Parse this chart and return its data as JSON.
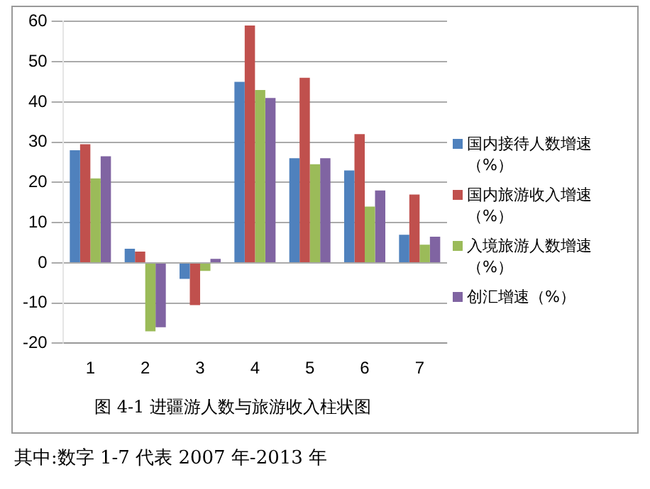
{
  "chart_data": {
    "type": "bar",
    "title": "图 4-1 进疆游人数与旅游收入柱状图",
    "annotations": [
      "其中:数字 1-7 代表 2007 年-2013 年"
    ],
    "categories": [
      "1",
      "2",
      "3",
      "4",
      "5",
      "6",
      "7"
    ],
    "series": [
      {
        "name": "国内接待人数增速（%）",
        "color": "#4f81bd",
        "values": [
          28,
          3.5,
          -4,
          45,
          26,
          23,
          7
        ]
      },
      {
        "name": "国内旅游收入增速（%）",
        "color": "#c0504d",
        "values": [
          29.5,
          2.8,
          -10.5,
          59,
          46,
          32,
          17
        ]
      },
      {
        "name": "入境旅游人数增速（%）",
        "color": "#9bbb59",
        "values": [
          21,
          -17,
          -2,
          43,
          24.5,
          14,
          4.5
        ]
      },
      {
        "name": "创汇增速（%）",
        "color": "#8064a2",
        "values": [
          26.5,
          -16,
          1,
          41,
          26,
          18,
          6.5
        ]
      }
    ],
    "ylim": [
      -20,
      60
    ],
    "yticks": [
      -20,
      -10,
      0,
      10,
      20,
      30,
      40,
      50,
      60
    ],
    "grid": "y",
    "legend": "right"
  }
}
